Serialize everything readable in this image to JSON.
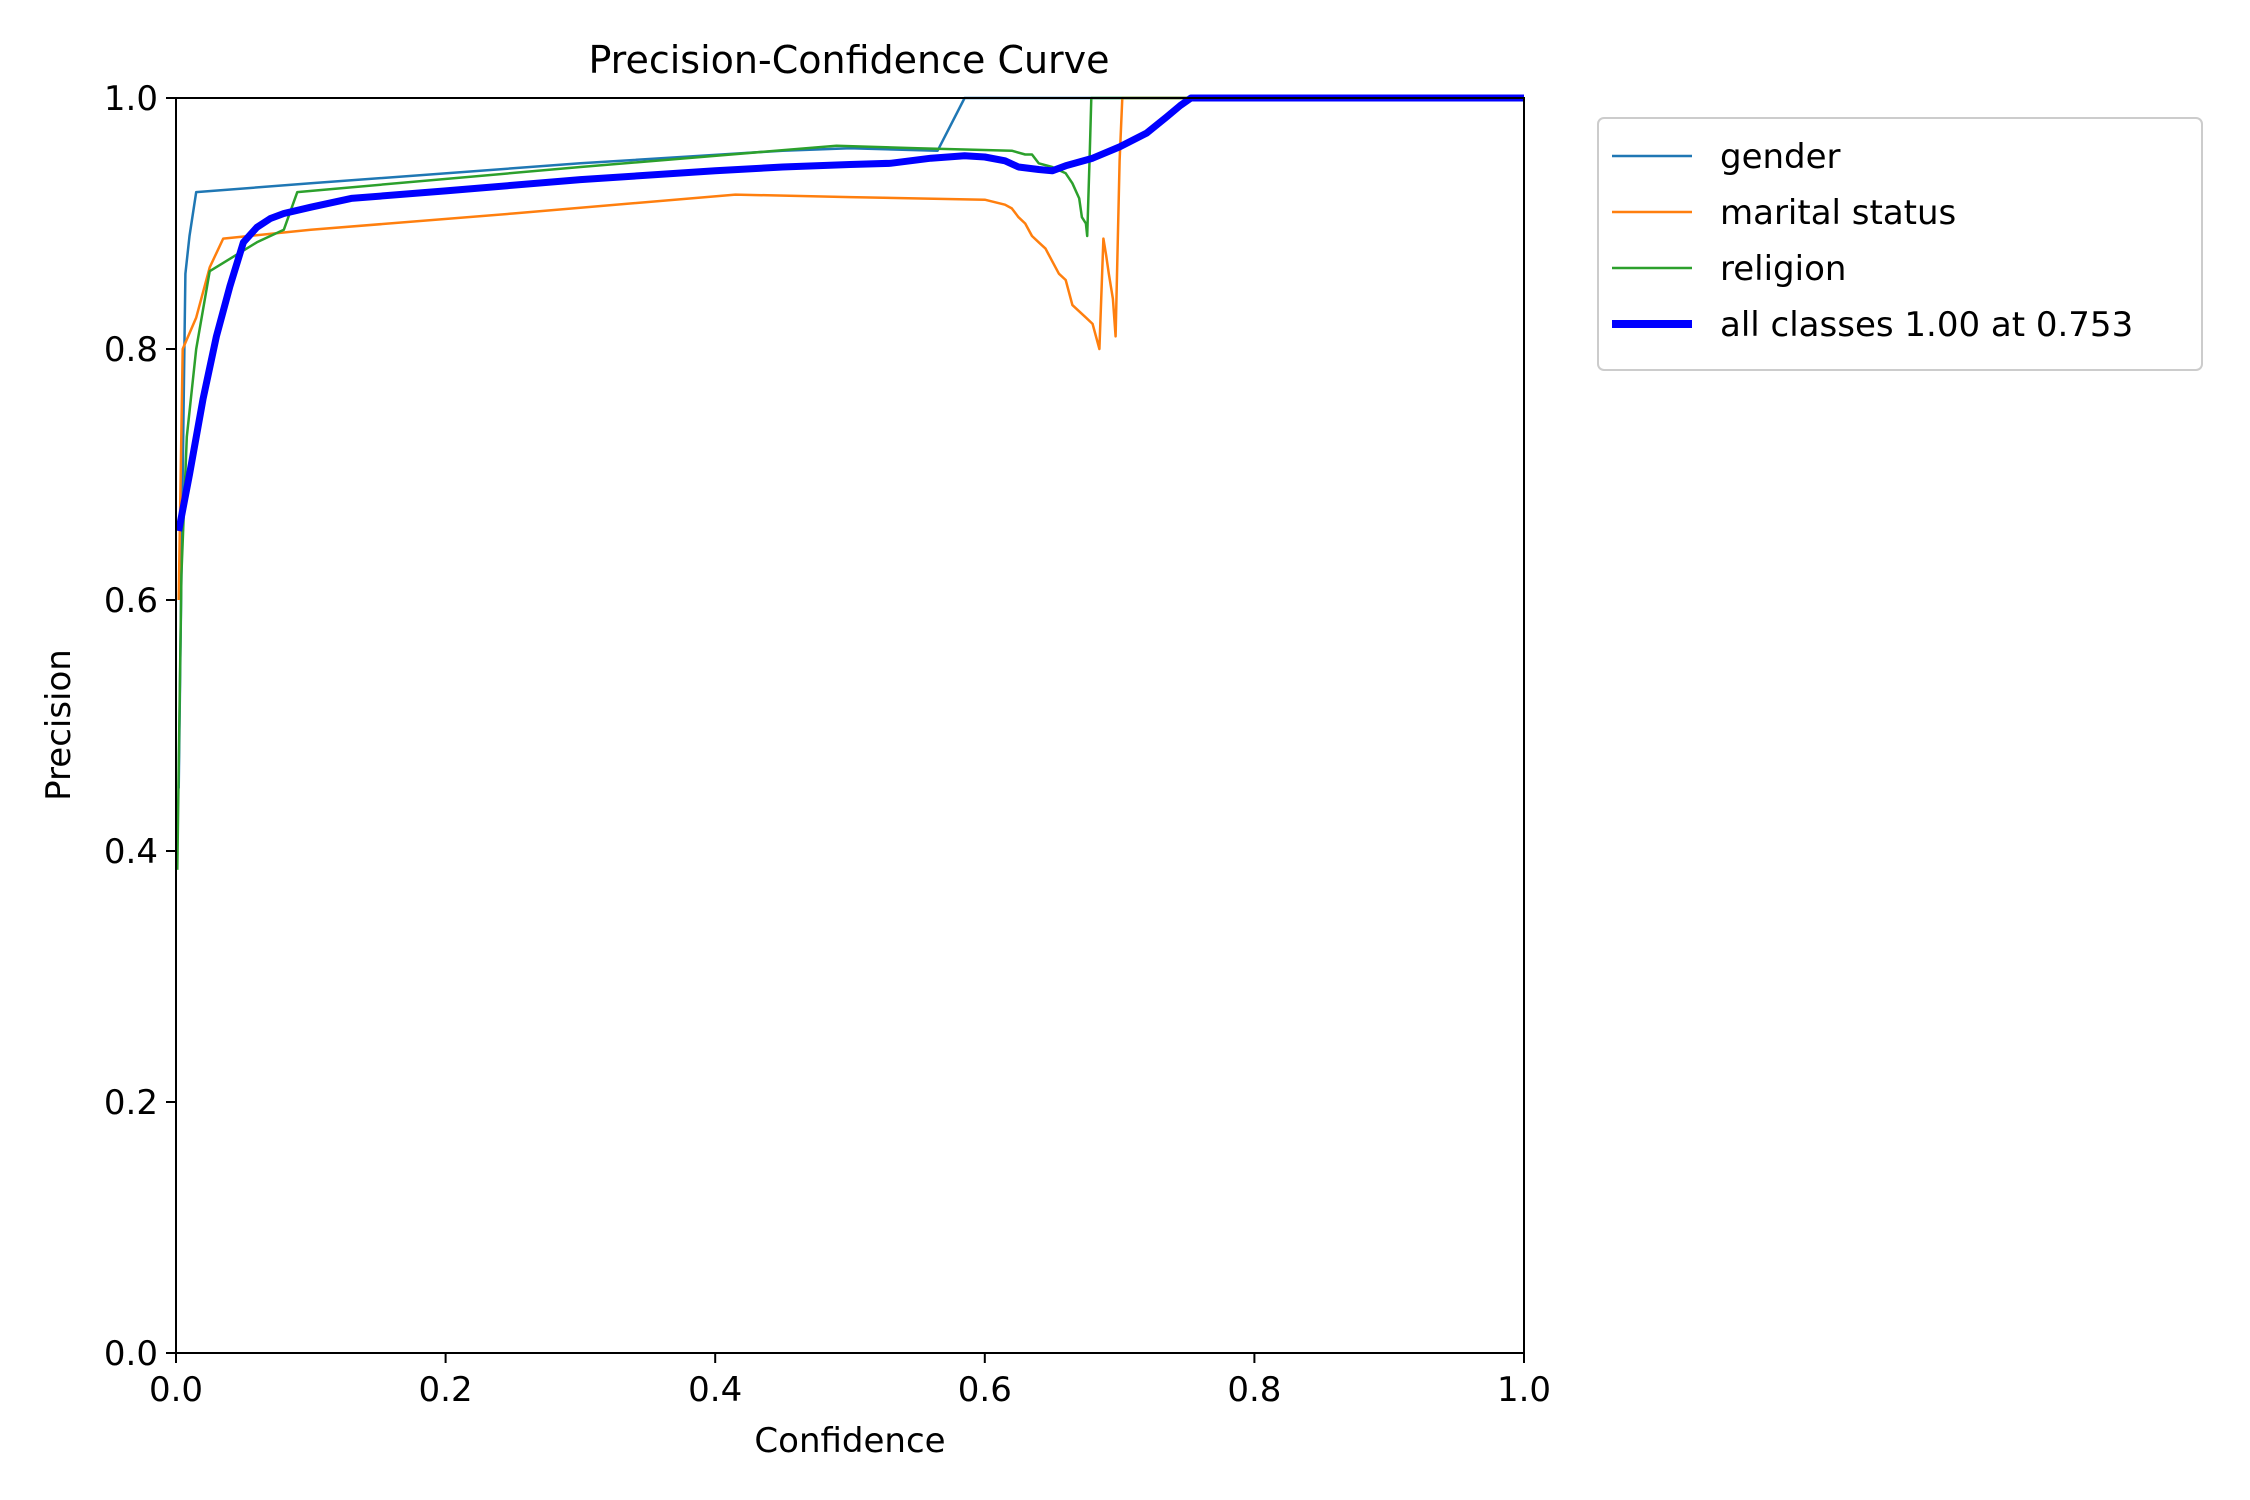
{
  "chart_data": {
    "type": "line",
    "title": "Precision-Confidence Curve",
    "xlabel": "Confidence",
    "ylabel": "Precision",
    "xlim": [
      0,
      1
    ],
    "ylim": [
      0,
      1
    ],
    "xticks": [
      "0.0",
      "0.2",
      "0.4",
      "0.6",
      "0.8",
      "1.0"
    ],
    "yticks": [
      "0.0",
      "0.2",
      "0.4",
      "0.6",
      "0.8",
      "1.0"
    ],
    "grid": false,
    "legend_position": "outside-top-right",
    "series": [
      {
        "name": "gender",
        "color": "#1f77b4",
        "width": "thin",
        "points": [
          [
            0.002,
            0.45
          ],
          [
            0.005,
            0.7
          ],
          [
            0.007,
            0.86
          ],
          [
            0.01,
            0.89
          ],
          [
            0.015,
            0.925
          ],
          [
            0.1,
            0.932
          ],
          [
            0.3,
            0.948
          ],
          [
            0.45,
            0.958
          ],
          [
            0.5,
            0.96
          ],
          [
            0.565,
            0.958
          ],
          [
            0.585,
            1.0
          ],
          [
            1.0,
            1.0
          ]
        ]
      },
      {
        "name": "marital status",
        "color": "#ff7f0e",
        "width": "thin",
        "points": [
          [
            0.002,
            0.6
          ],
          [
            0.005,
            0.8
          ],
          [
            0.015,
            0.825
          ],
          [
            0.025,
            0.865
          ],
          [
            0.035,
            0.888
          ],
          [
            0.1,
            0.895
          ],
          [
            0.25,
            0.908
          ],
          [
            0.415,
            0.923
          ],
          [
            0.5,
            0.921
          ],
          [
            0.6,
            0.919
          ],
          [
            0.615,
            0.915
          ],
          [
            0.62,
            0.912
          ],
          [
            0.625,
            0.905
          ],
          [
            0.63,
            0.9
          ],
          [
            0.635,
            0.89
          ],
          [
            0.64,
            0.885
          ],
          [
            0.645,
            0.88
          ],
          [
            0.65,
            0.87
          ],
          [
            0.655,
            0.86
          ],
          [
            0.66,
            0.855
          ],
          [
            0.665,
            0.835
          ],
          [
            0.675,
            0.825
          ],
          [
            0.68,
            0.82
          ],
          [
            0.685,
            0.8
          ],
          [
            0.688,
            0.888
          ],
          [
            0.69,
            0.875
          ],
          [
            0.692,
            0.86
          ],
          [
            0.695,
            0.84
          ],
          [
            0.697,
            0.81
          ],
          [
            0.7,
            0.95
          ],
          [
            0.702,
            1.0
          ],
          [
            1.0,
            1.0
          ]
        ]
      },
      {
        "name": "religion",
        "color": "#2ca02c",
        "width": "thin",
        "points": [
          [
            0.001,
            0.385
          ],
          [
            0.004,
            0.62
          ],
          [
            0.008,
            0.73
          ],
          [
            0.015,
            0.8
          ],
          [
            0.025,
            0.862
          ],
          [
            0.06,
            0.885
          ],
          [
            0.08,
            0.895
          ],
          [
            0.09,
            0.925
          ],
          [
            0.3,
            0.945
          ],
          [
            0.49,
            0.962
          ],
          [
            0.55,
            0.96
          ],
          [
            0.62,
            0.958
          ],
          [
            0.63,
            0.955
          ],
          [
            0.635,
            0.955
          ],
          [
            0.64,
            0.948
          ],
          [
            0.65,
            0.945
          ],
          [
            0.66,
            0.94
          ],
          [
            0.665,
            0.932
          ],
          [
            0.67,
            0.92
          ],
          [
            0.672,
            0.905
          ],
          [
            0.675,
            0.9
          ],
          [
            0.676,
            0.89
          ],
          [
            0.678,
            0.96
          ],
          [
            0.679,
            1.0
          ],
          [
            1.0,
            1.0
          ]
        ]
      },
      {
        "name": "all classes 1.00 at 0.753",
        "color": "#0000ff",
        "width": "thick",
        "points": [
          [
            0.002,
            0.655
          ],
          [
            0.01,
            0.7
          ],
          [
            0.02,
            0.76
          ],
          [
            0.03,
            0.81
          ],
          [
            0.04,
            0.85
          ],
          [
            0.05,
            0.885
          ],
          [
            0.06,
            0.897
          ],
          [
            0.07,
            0.904
          ],
          [
            0.08,
            0.908
          ],
          [
            0.1,
            0.913
          ],
          [
            0.13,
            0.92
          ],
          [
            0.2,
            0.926
          ],
          [
            0.3,
            0.935
          ],
          [
            0.4,
            0.942
          ],
          [
            0.45,
            0.945
          ],
          [
            0.5,
            0.947
          ],
          [
            0.53,
            0.948
          ],
          [
            0.56,
            0.952
          ],
          [
            0.585,
            0.954
          ],
          [
            0.6,
            0.953
          ],
          [
            0.615,
            0.95
          ],
          [
            0.625,
            0.945
          ],
          [
            0.64,
            0.943
          ],
          [
            0.65,
            0.942
          ],
          [
            0.66,
            0.946
          ],
          [
            0.68,
            0.952
          ],
          [
            0.7,
            0.961
          ],
          [
            0.72,
            0.972
          ],
          [
            0.735,
            0.985
          ],
          [
            0.745,
            0.994
          ],
          [
            0.753,
            1.0
          ],
          [
            1.0,
            1.0
          ]
        ]
      }
    ]
  }
}
